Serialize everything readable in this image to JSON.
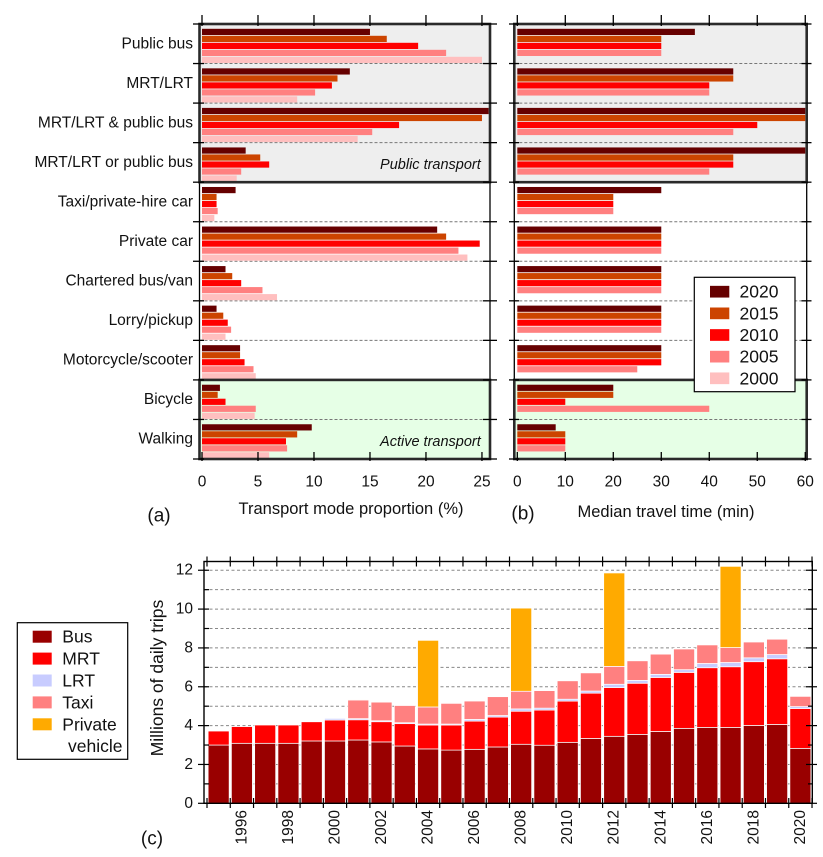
{
  "chart_data": [
    {
      "panel": "(a)",
      "type": "bar",
      "orientation": "horizontal",
      "title": "",
      "xlabel": "Transport mode proportion (%)",
      "ylabel": "",
      "xlim": [
        0,
        25.7
      ],
      "xticks": [
        0,
        5,
        10,
        15,
        20,
        25
      ],
      "grid": "dashed separators between categories",
      "legend": "none (shared with panel b)",
      "categories": [
        "Public bus",
        "MRT/LRT",
        "MRT/LRT & public bus",
        "MRT/LRT or public bus",
        "Taxi/private-hire car",
        "Private car",
        "Chartered bus/van",
        "Lorry/pickup",
        "Motorcycle/scooter",
        "Bicycle",
        "Walking"
      ],
      "groups": [
        {
          "label": "Public transport",
          "from": "Public bus",
          "to": "MRT/LRT or public bus",
          "fill": "#eeeeee"
        },
        {
          "label": "Active transport",
          "from": "Bicycle",
          "to": "Walking",
          "fill": "#e6ffe6"
        }
      ],
      "show_category_labels": true,
      "show_group_labels": true,
      "series": [
        {
          "name": "2020",
          "color": "#660000",
          "values": [
            15.0,
            13.2,
            25.6,
            3.9,
            3.0,
            21.0,
            2.1,
            1.3,
            3.4,
            1.6,
            9.8
          ]
        },
        {
          "name": "2015",
          "color": "#cc4400",
          "values": [
            16.5,
            12.1,
            25.0,
            5.2,
            1.3,
            21.8,
            2.7,
            1.9,
            3.4,
            1.4,
            8.5
          ]
        },
        {
          "name": "2010",
          "color": "#ff0000",
          "values": [
            19.3,
            11.6,
            17.6,
            6.0,
            1.3,
            24.8,
            3.5,
            2.3,
            3.8,
            2.1,
            7.5
          ]
        },
        {
          "name": "2005",
          "color": "#ff8080",
          "values": [
            21.8,
            10.1,
            15.2,
            3.5,
            1.4,
            22.9,
            5.4,
            2.6,
            4.6,
            4.8,
            7.6
          ]
        },
        {
          "name": "2000",
          "color": "#ffbfbf",
          "values": [
            25.0,
            8.5,
            13.9,
            3.1,
            1.1,
            23.7,
            6.7,
            2.1,
            4.8,
            4.7,
            6.0
          ]
        }
      ]
    },
    {
      "panel": "(b)",
      "type": "bar",
      "orientation": "horizontal",
      "title": "",
      "xlabel": "Median travel time (min)",
      "ylabel": "",
      "xlim": [
        0,
        60.3
      ],
      "xticks": [
        0,
        10,
        20,
        30,
        40,
        50,
        60
      ],
      "grid": "dashed separators between categories",
      "legend": "right (inside plot)",
      "categories": [
        "Public bus",
        "MRT/LRT",
        "MRT/LRT & public bus",
        "MRT/LRT or public bus",
        "Taxi/private-hire car",
        "Private car",
        "Chartered bus/van",
        "Lorry/pickup",
        "Motorcycle/scooter",
        "Bicycle",
        "Walking"
      ],
      "groups": [
        {
          "label": "Public transport",
          "from": "Public bus",
          "to": "MRT/LRT or public bus",
          "fill": "#eeeeee"
        },
        {
          "label": "Active transport",
          "from": "Bicycle",
          "to": "Walking",
          "fill": "#e6ffe6"
        }
      ],
      "show_category_labels": false,
      "show_group_labels": false,
      "series": [
        {
          "name": "2020",
          "color": "#660000",
          "values": [
            37,
            45,
            60,
            60,
            30,
            30,
            30,
            30,
            30,
            20,
            8
          ]
        },
        {
          "name": "2015",
          "color": "#cc4400",
          "values": [
            30,
            45,
            60,
            45,
            20,
            30,
            30,
            30,
            30,
            20,
            10
          ]
        },
        {
          "name": "2010",
          "color": "#ff0000",
          "values": [
            30,
            40,
            50,
            45,
            20,
            30,
            30,
            30,
            30,
            10,
            10
          ]
        },
        {
          "name": "2005",
          "color": "#ff8080",
          "values": [
            30,
            40,
            45,
            40,
            20,
            30,
            30,
            30,
            25,
            40,
            10
          ]
        },
        {
          "name": "2000",
          "color": "#ffbfbf",
          "values": [
            null,
            null,
            null,
            null,
            null,
            null,
            null,
            null,
            null,
            null,
            null
          ]
        }
      ]
    },
    {
      "panel": "(c)",
      "type": "bar",
      "stacked": true,
      "title": "",
      "xlabel": "",
      "ylabel": "Millions of daily trips",
      "ylim": [
        0,
        12.45
      ],
      "yticks": [
        0,
        2,
        4,
        6,
        8,
        10,
        12
      ],
      "grid": true,
      "legend": "left (outside plot)",
      "categories": [
        "1995",
        "1996",
        "1997",
        "1998",
        "1999",
        "2000",
        "2001",
        "2002",
        "2003",
        "2004",
        "2005",
        "2006",
        "2007",
        "2008",
        "2009",
        "2010",
        "2011",
        "2012",
        "2013",
        "2014",
        "2015",
        "2016",
        "2017",
        "2018",
        "2019",
        "2020"
      ],
      "xtick_labels": [
        "1996",
        "1998",
        "2000",
        "2002",
        "2004",
        "2006",
        "2008",
        "2010",
        "2012",
        "2014",
        "2016",
        "2018",
        "2020"
      ],
      "series": [
        {
          "name": "Bus",
          "color": "#990000",
          "values": [
            3.0,
            3.09,
            3.09,
            3.09,
            3.21,
            3.21,
            3.26,
            3.16,
            2.95,
            2.8,
            2.74,
            2.78,
            2.9,
            3.04,
            2.99,
            3.14,
            3.34,
            3.45,
            3.55,
            3.7,
            3.86,
            3.91,
            3.91,
            4.01,
            4.06,
            2.83
          ]
        },
        {
          "name": "MRT",
          "color": "#ff0000",
          "values": [
            0.72,
            0.86,
            0.94,
            0.94,
            0.99,
            1.08,
            1.04,
            1.04,
            1.15,
            1.23,
            1.29,
            1.45,
            1.54,
            1.7,
            1.81,
            2.12,
            2.33,
            2.51,
            2.63,
            2.78,
            2.88,
            3.07,
            3.12,
            3.28,
            3.38,
            2.05
          ]
        },
        {
          "name": "LRT",
          "color": "#c8ccff",
          "values": [
            0,
            0,
            0,
            0,
            0.03,
            0.08,
            0.06,
            0.05,
            0.05,
            0.05,
            0.05,
            0.09,
            0.08,
            0.12,
            0.1,
            0.1,
            0.11,
            0.17,
            0.15,
            0.16,
            0.14,
            0.22,
            0.22,
            0.2,
            0.22,
            0.1
          ]
        },
        {
          "name": "Taxi",
          "color": "#ff8080",
          "values": [
            0,
            0,
            0,
            0,
            0,
            0,
            0.96,
            0.96,
            0.89,
            0.88,
            1.07,
            0.95,
            0.97,
            0.91,
            0.9,
            0.95,
            0.94,
            0.92,
            1.01,
            1.04,
            1.07,
            0.96,
            0.77,
            0.82,
            0.79,
            0.53
          ]
        },
        {
          "name": "Private vehicle",
          "legend_lines": [
            "Private",
            "vehicle"
          ],
          "color": "#ffaa00",
          "values": [
            0,
            0,
            0,
            0,
            0,
            0,
            0.03,
            0.03,
            0.02,
            3.43,
            0.02,
            0.03,
            0.03,
            4.28,
            0.03,
            0.03,
            0.03,
            4.81,
            0.03,
            0.03,
            0.03,
            0.03,
            4.18,
            0.03,
            0.03,
            0.03
          ]
        }
      ]
    }
  ]
}
